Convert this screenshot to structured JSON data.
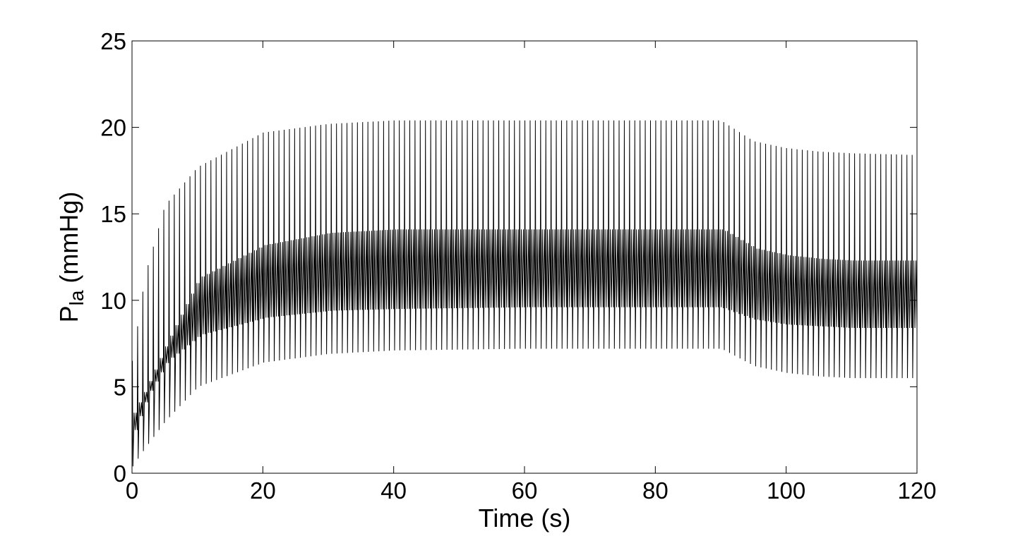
{
  "chart_data": {
    "type": "line",
    "title": "",
    "xlabel": "Time (s)",
    "ylabel": {
      "base": "P",
      "subscript": "la",
      "suffix": " (mmHg)"
    },
    "xlim": [
      0,
      120
    ],
    "ylim": [
      0,
      25
    ],
    "xticks": [
      "0",
      "20",
      "40",
      "60",
      "80",
      "100",
      "120"
    ],
    "yticks": [
      "0",
      "5",
      "10",
      "15",
      "20",
      "25"
    ],
    "grid": false,
    "legend": "none",
    "line_color": "#000000",
    "beat_period_s": 0.8,
    "envelope": {
      "description_keys": [
        "t",
        "max",
        "upper_band_top",
        "upper_band_bottom",
        "lower_band_top",
        "lower_band_bottom",
        "min"
      ],
      "t": [
        0,
        2,
        5,
        10,
        20,
        30,
        40,
        60,
        80,
        90,
        95,
        100,
        105,
        110,
        120
      ],
      "max": [
        6.5,
        11.5,
        15.5,
        17.7,
        19.7,
        20.2,
        20.4,
        20.4,
        20.4,
        20.4,
        19.2,
        18.8,
        18.6,
        18.5,
        18.4
      ],
      "upper_band_top": [
        3.5,
        5.0,
        7.5,
        11.3,
        13.2,
        13.9,
        14.1,
        14.1,
        14.1,
        14.1,
        13.0,
        12.6,
        12.4,
        12.3,
        12.3
      ],
      "upper_band_bottom": [
        2.5,
        4.5,
        6.5,
        8.0,
        9.0,
        9.4,
        9.5,
        9.6,
        9.6,
        9.6,
        8.9,
        8.6,
        8.5,
        8.4,
        8.4
      ],
      "min": [
        0.4,
        1.5,
        3.0,
        5.0,
        6.4,
        6.9,
        7.1,
        7.2,
        7.2,
        7.2,
        6.2,
        5.8,
        5.6,
        5.5,
        5.5
      ]
    }
  }
}
